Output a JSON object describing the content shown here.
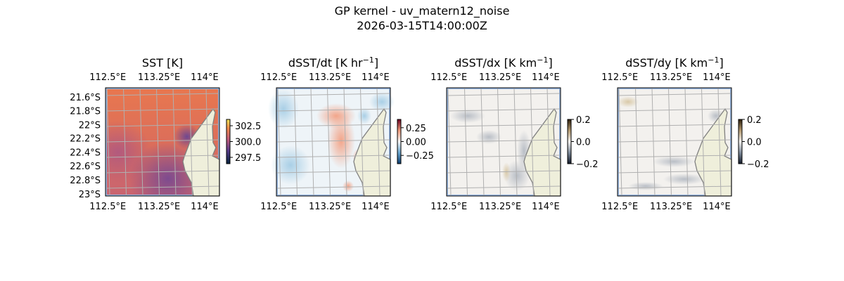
{
  "figure": {
    "title_line1": "GP kernel - uv_matern12_noise",
    "title_line2": "2026-03-15T14:00:00Z"
  },
  "colors": {
    "ocean_mask": "#97b6e0",
    "land": "#efefdb",
    "coast": "#808080",
    "grid": "#b0b0b0"
  },
  "chart_data": [
    {
      "type": "heatmap",
      "title": "SST [K]",
      "title_super": "",
      "colormap": "thermal",
      "x_tick_labels": [
        "112.5°E",
        "113.25°E",
        "114°E"
      ],
      "y_tick_labels": [
        "21.6°S",
        "21.8°S",
        "22°S",
        "22.2°S",
        "22.4°S",
        "22.6°S",
        "22.8°S",
        "23°S"
      ],
      "colorbar_ticks": [
        "302.5",
        "300.0",
        "297.5"
      ],
      "colorbar_range": [
        296.5,
        303.5
      ]
    },
    {
      "type": "heatmap",
      "title": "dSST/dt [K hr",
      "title_super": "−1",
      "colormap": "RdBu_r",
      "x_tick_labels": [
        "112.5°E",
        "113.25°E",
        "114°E"
      ],
      "y_tick_labels": [],
      "colorbar_ticks": [
        "0.25",
        "0.00",
        "−0.25"
      ],
      "colorbar_range": [
        -0.4,
        0.4
      ]
    },
    {
      "type": "heatmap",
      "title": "dSST/dx [K km",
      "title_super": "−1",
      "colormap": "diverging gray-brown",
      "x_tick_labels": [
        "112.5°E",
        "113.25°E",
        "114°E"
      ],
      "y_tick_labels": [],
      "colorbar_ticks": [
        "0.2",
        "0.0",
        "−0.2"
      ],
      "colorbar_range": [
        -0.2,
        0.2
      ]
    },
    {
      "type": "heatmap",
      "title": "dSST/dy [K km",
      "title_super": "−1",
      "colormap": "diverging gray-brown",
      "x_tick_labels": [
        "112.5°E",
        "113.25°E",
        "114°E"
      ],
      "y_tick_labels": [],
      "colorbar_ticks": [
        "0.2",
        "0.0",
        "−0.2"
      ],
      "colorbar_range": [
        -0.2,
        0.2
      ]
    }
  ]
}
